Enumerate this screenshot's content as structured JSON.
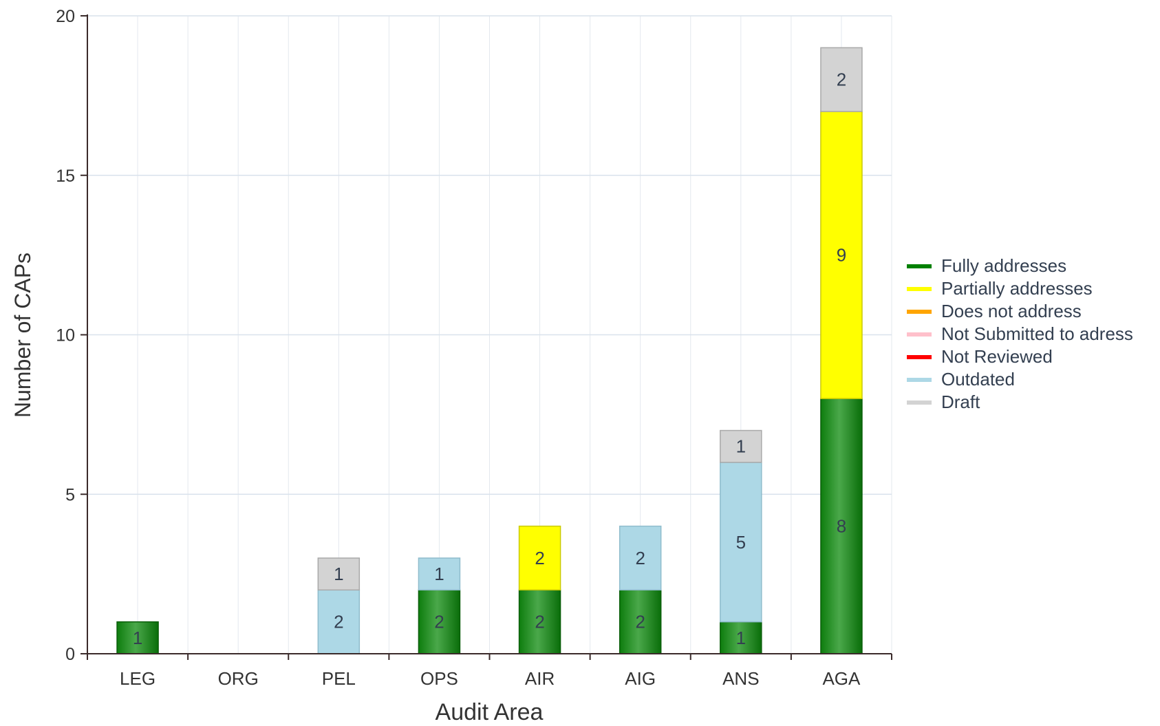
{
  "chart_data": {
    "type": "bar",
    "stacked": true,
    "xlabel": "Audit Area",
    "ylabel": "Number of CAPs",
    "ylim": [
      0,
      20
    ],
    "yticks": [
      0,
      5,
      10,
      15,
      20
    ],
    "grid": true,
    "legend_position": "right",
    "categories": [
      "LEG",
      "ORG",
      "PEL",
      "OPS",
      "AIR",
      "AIG",
      "ANS",
      "AGA"
    ],
    "series": [
      {
        "name": "Fully addresses",
        "color": "#008000",
        "values": [
          1,
          0,
          0,
          2,
          2,
          2,
          1,
          8
        ]
      },
      {
        "name": "Partially addresses",
        "color": "#ffff00",
        "values": [
          0,
          0,
          0,
          0,
          2,
          0,
          0,
          9
        ]
      },
      {
        "name": "Does not address",
        "color": "#ffa500",
        "values": [
          0,
          0,
          0,
          0,
          0,
          0,
          0,
          0
        ]
      },
      {
        "name": "Not Submitted to adress",
        "color": "#ffc0cb",
        "values": [
          0,
          0,
          0,
          0,
          0,
          0,
          0,
          0
        ]
      },
      {
        "name": "Not Reviewed",
        "color": "#ff0000",
        "values": [
          0,
          0,
          0,
          0,
          0,
          0,
          0,
          0
        ]
      },
      {
        "name": "Outdated",
        "color": "#add8e6",
        "values": [
          0,
          0,
          2,
          1,
          0,
          2,
          5,
          0
        ]
      },
      {
        "name": "Draft",
        "color": "#d3d3d3",
        "values": [
          0,
          0,
          1,
          0,
          0,
          0,
          1,
          2
        ]
      }
    ]
  }
}
